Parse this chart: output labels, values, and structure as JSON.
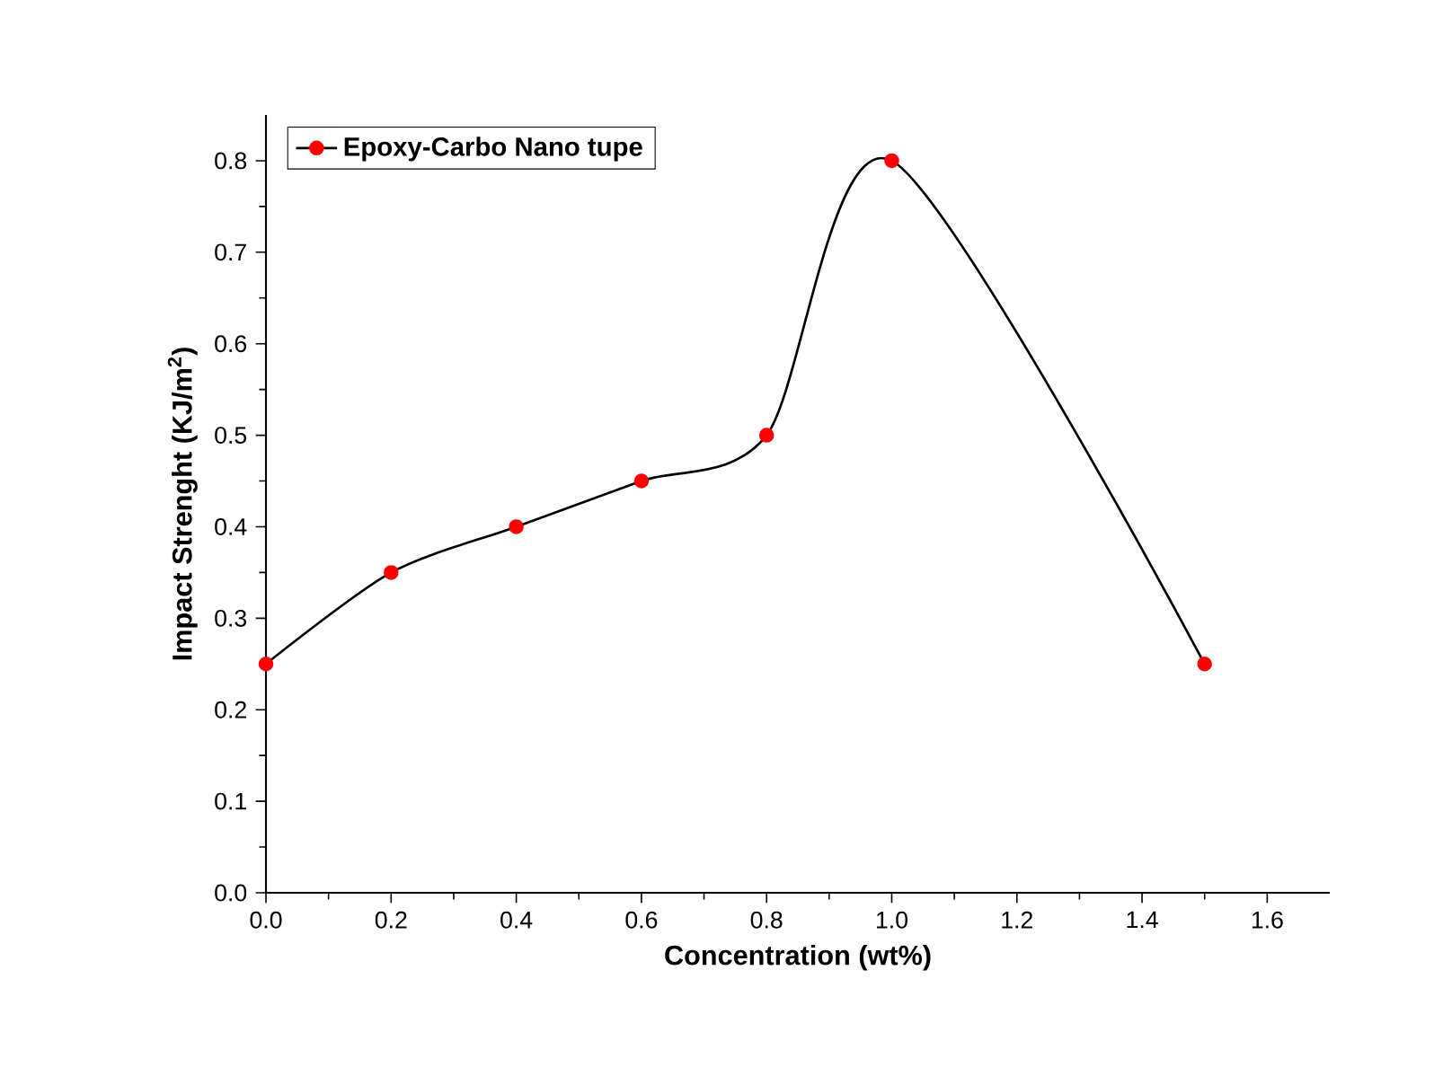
{
  "chart_data": {
    "type": "line",
    "xlabel": "Concentration (wt%)",
    "ylabel": "Impact Strenght (KJ/m$^{2}$)",
    "x": [
      0.0,
      0.2,
      0.4,
      0.6,
      0.8,
      1.0,
      1.5
    ],
    "series": [
      {
        "name": "Epoxy-Carbo Nano tupe",
        "color": "#ff0000",
        "values": [
          0.25,
          0.35,
          0.4,
          0.45,
          0.5,
          0.8,
          0.25
        ]
      }
    ],
    "xlim": [
      0,
      1.7
    ],
    "ylim": [
      0,
      0.85
    ],
    "xticks": [
      {
        "value": 0,
        "label": "0.0"
      },
      0.2,
      0.4,
      0.6,
      0.8,
      {
        "value": 1,
        "label": "1.0"
      },
      1.2,
      1.4,
      1.6
    ],
    "yticks": [
      {
        "value": 0,
        "label": "0.0"
      },
      0.1,
      0.2,
      0.3,
      0.4,
      0.5,
      0.6,
      0.7,
      0.8
    ],
    "grid": false,
    "legend": "top left",
    "marker": "circle",
    "line_style": "solid"
  }
}
